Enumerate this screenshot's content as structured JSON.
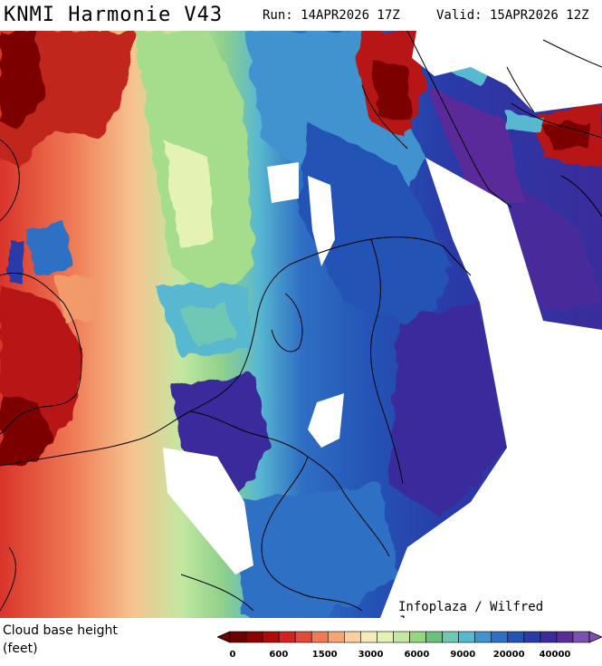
{
  "header": {
    "title": "KNMI Harmonie V43",
    "run": "Run: 14APR2026 17Z",
    "valid": "Valid: 15APR2026 12Z"
  },
  "credit": "Infoplaza / Wilfred Janssen",
  "legend": {
    "title_line1": "Cloud base height",
    "title_line2": "(feet)",
    "colors": [
      "#6b0000",
      "#8c0000",
      "#b00a0a",
      "#d22222",
      "#e24a3a",
      "#ef7a55",
      "#f6a674",
      "#fbcf9e",
      "#f5eaba",
      "#e4f2b4",
      "#c3e8a1",
      "#95d67f",
      "#6cc17e",
      "#6ec8b4",
      "#58b8d0",
      "#3f93cf",
      "#2f6fc4",
      "#2452b5",
      "#2a3aa8",
      "#3a2c9c",
      "#5a2c9a",
      "#7a53b0"
    ],
    "ticks": [
      "0",
      "600",
      "1500",
      "3000",
      "6000",
      "9000",
      "20000",
      "40000"
    ]
  }
}
